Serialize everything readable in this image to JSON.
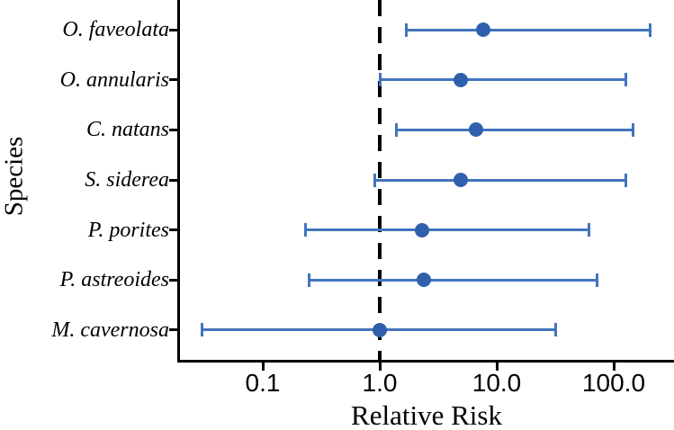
{
  "chart_data": {
    "type": "scatter",
    "subtype": "forest-plot",
    "title": "",
    "xlabel": "Relative Risk",
    "ylabel": "Species",
    "x_scale": "log10",
    "xlim": [
      0.02,
      330
    ],
    "x_ticks": [
      0.1,
      1.0,
      10.0,
      100.0
    ],
    "x_tick_labels": [
      "0.1",
      "1.0",
      "10.0",
      "100.0"
    ],
    "reference_line_x": 1.0,
    "grid": false,
    "legend": "none",
    "categories": [
      "O. faveolata",
      "O. annularis",
      "C. natans",
      "S. siderea",
      "P. porites",
      "P. astreoides",
      "M. cavernosa"
    ],
    "series": [
      {
        "name": "relative_risk",
        "values": [
          7.7,
          4.9,
          6.6,
          4.9,
          2.3,
          2.4,
          1.0
        ],
        "ci_low": [
          1.7,
          1.0,
          1.4,
          0.9,
          0.23,
          0.25,
          0.03
        ],
        "ci_high": [
          205,
          126,
          147,
          128,
          61,
          72,
          32
        ]
      }
    ],
    "colors": {
      "point": "#3060ac",
      "error_bar": "#4274bf",
      "reference_line": "#000000",
      "axis": "#000000",
      "background": "#ffffff"
    }
  }
}
